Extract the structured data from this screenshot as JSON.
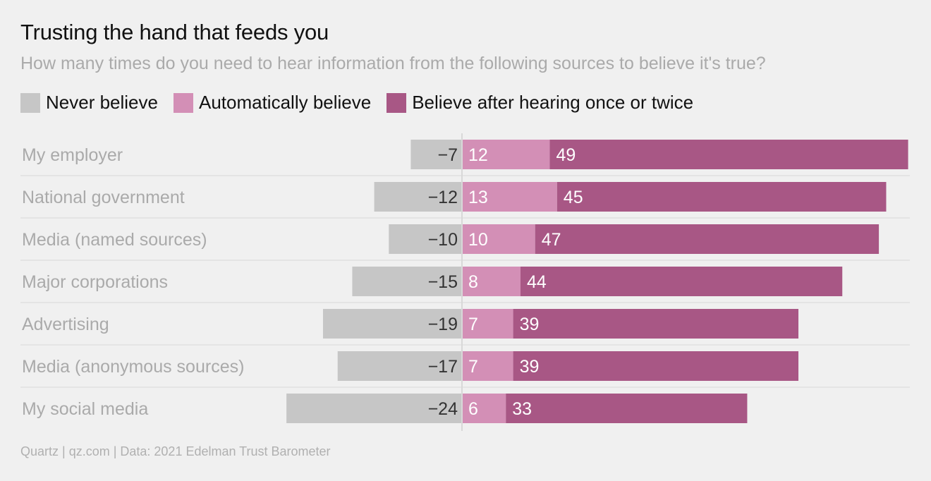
{
  "title": "Trusting the hand that feeds you",
  "subtitle": "How many times do you need to hear information from the following sources to believe it's true?",
  "footer": "Quartz | qz.com | Data: 2021 Edelman Trust Barometer",
  "colors": {
    "background": "#f0f0f0",
    "never": "#c6c6c6",
    "auto": "#d38fb6",
    "once": "#a85785",
    "gridline": "#e0e0e0",
    "zero_line": "#d8d8d8"
  },
  "chart_data": {
    "type": "bar",
    "orientation": "horizontal",
    "stacked": true,
    "title": "Trusting the hand that feeds you",
    "subtitle": "How many times do you need to hear information from the following sources to believe it's true?",
    "categories": [
      "My employer",
      "National government",
      "Media (named sources)",
      "Major corporations",
      "Advertising",
      "Media (anonymous sources)",
      "My social media"
    ],
    "series": [
      {
        "name": "Never believe",
        "color": "#c6c6c6",
        "values": [
          -7,
          -12,
          -10,
          -15,
          -19,
          -17,
          -24
        ],
        "labels": [
          "−7",
          "−12",
          "−10",
          "−15",
          "−19",
          "−17",
          "−24"
        ]
      },
      {
        "name": "Automatically believe",
        "color": "#d38fb6",
        "values": [
          12,
          13,
          10,
          8,
          7,
          7,
          6
        ],
        "labels": [
          "12",
          "13",
          "10",
          "8",
          "7",
          "7",
          "6"
        ]
      },
      {
        "name": "Believe after hearing once or twice",
        "color": "#a85785",
        "values": [
          49,
          45,
          47,
          44,
          39,
          39,
          33
        ],
        "labels": [
          "49",
          "45",
          "47",
          "44",
          "39",
          "39",
          "33"
        ]
      }
    ],
    "xlim": [
      -25,
      61
    ],
    "legend_position": "top-left",
    "grid": false
  }
}
